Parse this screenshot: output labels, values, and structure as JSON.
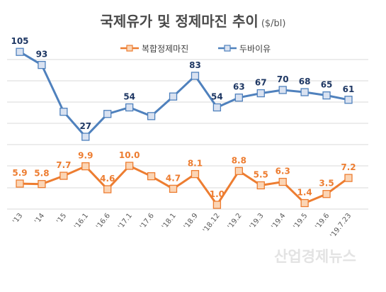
{
  "chart_data": {
    "type": "line",
    "title": "국제유가 및 정제마진 추이",
    "unit": "($/bl)",
    "categories": [
      "'13",
      "'14",
      "'15",
      "'16.1",
      "'16.6",
      "'17.1",
      "'17.6",
      "'18.1",
      "'18.9",
      "'18.12",
      "'19.2",
      "'19.3",
      "'19.4",
      "'19.5",
      "'19.6",
      "'19.7.23"
    ],
    "series": [
      {
        "name": "복합정제마진",
        "color": "#ed7d31",
        "marker_fill": "#fbd5b5",
        "label_color": "#ed7d31",
        "values": [
          5.9,
          5.8,
          7.7,
          9.9,
          4.6,
          10.0,
          7.6,
          4.7,
          8.1,
          1.0,
          8.8,
          5.5,
          6.3,
          1.4,
          3.5,
          7.2
        ],
        "labels": [
          "5.9",
          "5.8",
          "7.7",
          "9.9",
          "4.6",
          "10.0",
          "",
          "4.7",
          "8.1",
          "1.0",
          "8.8",
          "5.5",
          "6.3",
          "1.4",
          "3.5",
          "7.2"
        ]
      },
      {
        "name": "두바이유",
        "color": "#4f81bd",
        "marker_fill": "#d9e2f1",
        "label_color": "#1f3864",
        "values": [
          105,
          93,
          50,
          27,
          48,
          54,
          46,
          64,
          83,
          54,
          63,
          67,
          70,
          68,
          65,
          61
        ],
        "labels": [
          "105",
          "93",
          "",
          "27",
          "",
          "54",
          "",
          "",
          "83",
          "54",
          "63",
          "67",
          "70",
          "68",
          "65",
          "61"
        ]
      }
    ],
    "legend_position": "top",
    "grid": true
  },
  "watermark": "산업경제뉴스"
}
